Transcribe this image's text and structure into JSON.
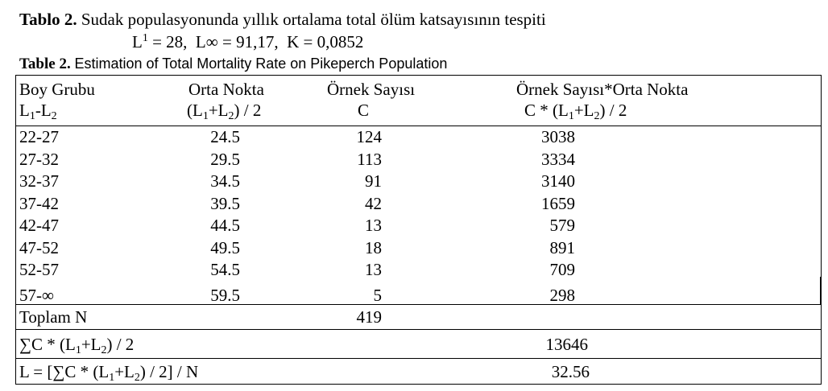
{
  "caption_tr": {
    "label": "Tablo 2.",
    "text": "Sudak populasyonunda yıllık ortalama total ölüm katsayısının tespiti"
  },
  "params": {
    "l_prefix": "L",
    "l_sup": "1",
    "l_value": "= 28,",
    "linf": "L∞ = 91,17,",
    "k": "K = 0,0852"
  },
  "caption_en": {
    "label": "Table 2.",
    "text": "Estimation of Total Mortality Rate on Pikeperch Population"
  },
  "headers": {
    "col1": {
      "line1": "Boy Grubu",
      "line2_a": "L",
      "line2_sub1": "1",
      "line2_b": "-L",
      "line2_sub2": "2"
    },
    "col2": {
      "line1": "Orta Nokta",
      "line2_a": "(L",
      "line2_sub1": "1",
      "line2_b": "+L",
      "line2_sub2": "2",
      "line2_c": ") / 2"
    },
    "col3": {
      "line1": "Örnek Sayısı",
      "line2": "C"
    },
    "col4": {
      "line1": "Örnek Sayısı*Orta Nokta",
      "line2_a": "C * (L",
      "line2_sub1": "1",
      "line2_b": "+L",
      "line2_sub2": "2",
      "line2_c": ") / 2"
    }
  },
  "rows": [
    {
      "group": "22-27",
      "mid": "24.5",
      "count": "124",
      "product": "3038"
    },
    {
      "group": "27-32",
      "mid": "29.5",
      "count": "113",
      "product": "3334"
    },
    {
      "group": "32-37",
      "mid": "34.5",
      "count": "91",
      "product": "3140"
    },
    {
      "group": "37-42",
      "mid": "39.5",
      "count": "42",
      "product": "1659"
    },
    {
      "group": "42-47",
      "mid": "44.5",
      "count": "13",
      "product": "579"
    },
    {
      "group": "47-52",
      "mid": "49.5",
      "count": "18",
      "product": "891"
    },
    {
      "group": "52-57",
      "mid": "54.5",
      "count": "13",
      "product": "709"
    },
    {
      "group": "57-∞",
      "mid": "59.5",
      "count": "5",
      "product": "298"
    }
  ],
  "total": {
    "label": "Toplam N",
    "value": "419"
  },
  "sum": {
    "label_a": "∑C * (L",
    "sub1": "1",
    "label_b": "+L",
    "sub2": "2",
    "label_c": ") / 2",
    "value": "13646"
  },
  "mean": {
    "label_a": "L = [∑C * (L",
    "sub1": "1",
    "label_b": "+L",
    "sub2": "2",
    "label_c": ") / 2] / N",
    "value": "32.56"
  }
}
